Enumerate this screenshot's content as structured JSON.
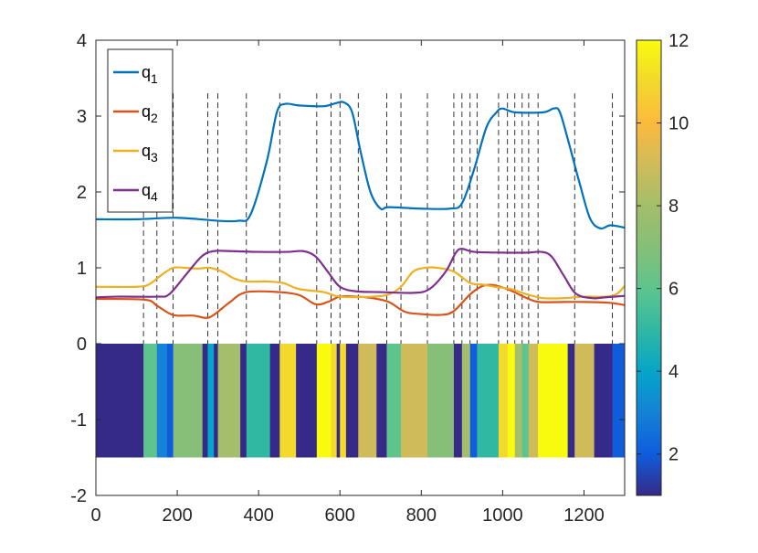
{
  "chart_data": {
    "type": "line",
    "xlim": [
      0,
      1300
    ],
    "ylim": [
      -2,
      4
    ],
    "x_ticks": [
      0,
      200,
      400,
      600,
      800,
      1000,
      1200
    ],
    "y_ticks": [
      -2,
      -1,
      0,
      1,
      2,
      3,
      4
    ],
    "grid": false,
    "legend_position": "top-left",
    "series": [
      {
        "name": "q_1",
        "color": "#0072BD",
        "points": [
          [
            0,
            1.64
          ],
          [
            100,
            1.64
          ],
          [
            200,
            1.66
          ],
          [
            300,
            1.62
          ],
          [
            350,
            1.62
          ],
          [
            380,
            1.7
          ],
          [
            420,
            2.4
          ],
          [
            445,
            3.05
          ],
          [
            465,
            3.16
          ],
          [
            500,
            3.14
          ],
          [
            560,
            3.13
          ],
          [
            590,
            3.17
          ],
          [
            610,
            3.18
          ],
          [
            630,
            3.05
          ],
          [
            650,
            2.55
          ],
          [
            675,
            2.0
          ],
          [
            700,
            1.78
          ],
          [
            720,
            1.8
          ],
          [
            800,
            1.78
          ],
          [
            870,
            1.78
          ],
          [
            900,
            1.85
          ],
          [
            930,
            2.3
          ],
          [
            960,
            2.85
          ],
          [
            985,
            3.05
          ],
          [
            1000,
            3.1
          ],
          [
            1030,
            3.05
          ],
          [
            1100,
            3.05
          ],
          [
            1125,
            3.1
          ],
          [
            1140,
            3.06
          ],
          [
            1160,
            2.7
          ],
          [
            1190,
            2.1
          ],
          [
            1215,
            1.65
          ],
          [
            1240,
            1.52
          ],
          [
            1265,
            1.56
          ],
          [
            1300,
            1.53
          ]
        ]
      },
      {
        "name": "q_2",
        "color": "#D95319",
        "points": [
          [
            0,
            0.59
          ],
          [
            120,
            0.58
          ],
          [
            150,
            0.5
          ],
          [
            180,
            0.4
          ],
          [
            200,
            0.37
          ],
          [
            240,
            0.37
          ],
          [
            270,
            0.34
          ],
          [
            290,
            0.38
          ],
          [
            330,
            0.55
          ],
          [
            370,
            0.68
          ],
          [
            450,
            0.68
          ],
          [
            500,
            0.64
          ],
          [
            540,
            0.52
          ],
          [
            570,
            0.55
          ],
          [
            600,
            0.62
          ],
          [
            640,
            0.62
          ],
          [
            680,
            0.6
          ],
          [
            720,
            0.55
          ],
          [
            760,
            0.42
          ],
          [
            800,
            0.39
          ],
          [
            850,
            0.38
          ],
          [
            880,
            0.43
          ],
          [
            920,
            0.65
          ],
          [
            950,
            0.76
          ],
          [
            980,
            0.77
          ],
          [
            1020,
            0.7
          ],
          [
            1060,
            0.6
          ],
          [
            1090,
            0.55
          ],
          [
            1150,
            0.55
          ],
          [
            1200,
            0.55
          ],
          [
            1260,
            0.54
          ],
          [
            1300,
            0.51
          ]
        ]
      },
      {
        "name": "q_3",
        "color": "#EDB120",
        "points": [
          [
            0,
            0.75
          ],
          [
            100,
            0.75
          ],
          [
            130,
            0.78
          ],
          [
            160,
            0.9
          ],
          [
            190,
            1.0
          ],
          [
            220,
            1.0
          ],
          [
            250,
            0.99
          ],
          [
            280,
            1.0
          ],
          [
            310,
            0.95
          ],
          [
            340,
            0.86
          ],
          [
            370,
            0.82
          ],
          [
            420,
            0.82
          ],
          [
            460,
            0.8
          ],
          [
            500,
            0.72
          ],
          [
            560,
            0.68
          ],
          [
            600,
            0.62
          ],
          [
            680,
            0.62
          ],
          [
            720,
            0.65
          ],
          [
            750,
            0.75
          ],
          [
            780,
            0.95
          ],
          [
            810,
            1.0
          ],
          [
            840,
            1.0
          ],
          [
            880,
            0.95
          ],
          [
            920,
            0.8
          ],
          [
            950,
            0.78
          ],
          [
            980,
            0.75
          ],
          [
            1020,
            0.72
          ],
          [
            1060,
            0.65
          ],
          [
            1100,
            0.6
          ],
          [
            1150,
            0.6
          ],
          [
            1200,
            0.62
          ],
          [
            1270,
            0.63
          ],
          [
            1300,
            0.76
          ]
        ]
      },
      {
        "name": "q_4",
        "color": "#7E2F8E",
        "points": [
          [
            0,
            0.61
          ],
          [
            50,
            0.62
          ],
          [
            150,
            0.62
          ],
          [
            180,
            0.65
          ],
          [
            220,
            0.9
          ],
          [
            260,
            1.15
          ],
          [
            290,
            1.22
          ],
          [
            330,
            1.22
          ],
          [
            400,
            1.21
          ],
          [
            470,
            1.21
          ],
          [
            510,
            1.22
          ],
          [
            540,
            1.15
          ],
          [
            570,
            0.95
          ],
          [
            600,
            0.75
          ],
          [
            640,
            0.69
          ],
          [
            700,
            0.68
          ],
          [
            780,
            0.67
          ],
          [
            820,
            0.72
          ],
          [
            860,
            0.95
          ],
          [
            885,
            1.2
          ],
          [
            900,
            1.25
          ],
          [
            930,
            1.21
          ],
          [
            1000,
            1.2
          ],
          [
            1060,
            1.2
          ],
          [
            1095,
            1.21
          ],
          [
            1120,
            1.15
          ],
          [
            1150,
            0.9
          ],
          [
            1180,
            0.66
          ],
          [
            1220,
            0.6
          ],
          [
            1250,
            0.61
          ],
          [
            1300,
            0.63
          ]
        ]
      }
    ],
    "vlines_x": [
      117,
      150,
      190,
      275,
      300,
      370,
      452,
      543,
      578,
      600,
      645,
      715,
      750,
      815,
      880,
      900,
      920,
      937,
      990,
      1012,
      1030,
      1048,
      1064,
      1087,
      1177,
      1270
    ],
    "vlines_y_range": [
      0,
      3.3
    ],
    "state_segments": [
      {
        "start": 0,
        "end": 117,
        "state": 1
      },
      {
        "start": 117,
        "end": 150,
        "state": 6
      },
      {
        "start": 150,
        "end": 175,
        "state": 3
      },
      {
        "start": 175,
        "end": 190,
        "state": 2
      },
      {
        "start": 190,
        "end": 262,
        "state": 7
      },
      {
        "start": 262,
        "end": 275,
        "state": 1
      },
      {
        "start": 275,
        "end": 290,
        "state": 4
      },
      {
        "start": 290,
        "end": 300,
        "state": 1
      },
      {
        "start": 300,
        "end": 355,
        "state": 8
      },
      {
        "start": 355,
        "end": 370,
        "state": 1
      },
      {
        "start": 370,
        "end": 428,
        "state": 5
      },
      {
        "start": 428,
        "end": 452,
        "state": 1
      },
      {
        "start": 452,
        "end": 492,
        "state": 11
      },
      {
        "start": 492,
        "end": 543,
        "state": 1
      },
      {
        "start": 543,
        "end": 578,
        "state": 12
      },
      {
        "start": 578,
        "end": 592,
        "state": 11
      },
      {
        "start": 592,
        "end": 600,
        "state": 1
      },
      {
        "start": 600,
        "end": 615,
        "state": 11
      },
      {
        "start": 615,
        "end": 645,
        "state": 1
      },
      {
        "start": 645,
        "end": 690,
        "state": 9
      },
      {
        "start": 690,
        "end": 715,
        "state": 1
      },
      {
        "start": 715,
        "end": 750,
        "state": 6
      },
      {
        "start": 750,
        "end": 815,
        "state": 9
      },
      {
        "start": 815,
        "end": 880,
        "state": 7
      },
      {
        "start": 880,
        "end": 900,
        "state": 1
      },
      {
        "start": 900,
        "end": 920,
        "state": 8
      },
      {
        "start": 920,
        "end": 937,
        "state": 2
      },
      {
        "start": 937,
        "end": 990,
        "state": 5
      },
      {
        "start": 990,
        "end": 1012,
        "state": 11
      },
      {
        "start": 1012,
        "end": 1030,
        "state": 12
      },
      {
        "start": 1030,
        "end": 1048,
        "state": 8
      },
      {
        "start": 1048,
        "end": 1064,
        "state": 6
      },
      {
        "start": 1064,
        "end": 1087,
        "state": 9
      },
      {
        "start": 1087,
        "end": 1160,
        "state": 12
      },
      {
        "start": 1160,
        "end": 1177,
        "state": 1
      },
      {
        "start": 1177,
        "end": 1225,
        "state": 9
      },
      {
        "start": 1225,
        "end": 1270,
        "state": 1
      },
      {
        "start": 1270,
        "end": 1300,
        "state": 2
      }
    ],
    "state_bar_y_range": [
      -1.5,
      0
    ],
    "colorbar": {
      "colormap": "parula",
      "limits": [
        1,
        12
      ],
      "ticks": [
        2,
        4,
        6,
        8,
        10,
        12
      ]
    }
  }
}
